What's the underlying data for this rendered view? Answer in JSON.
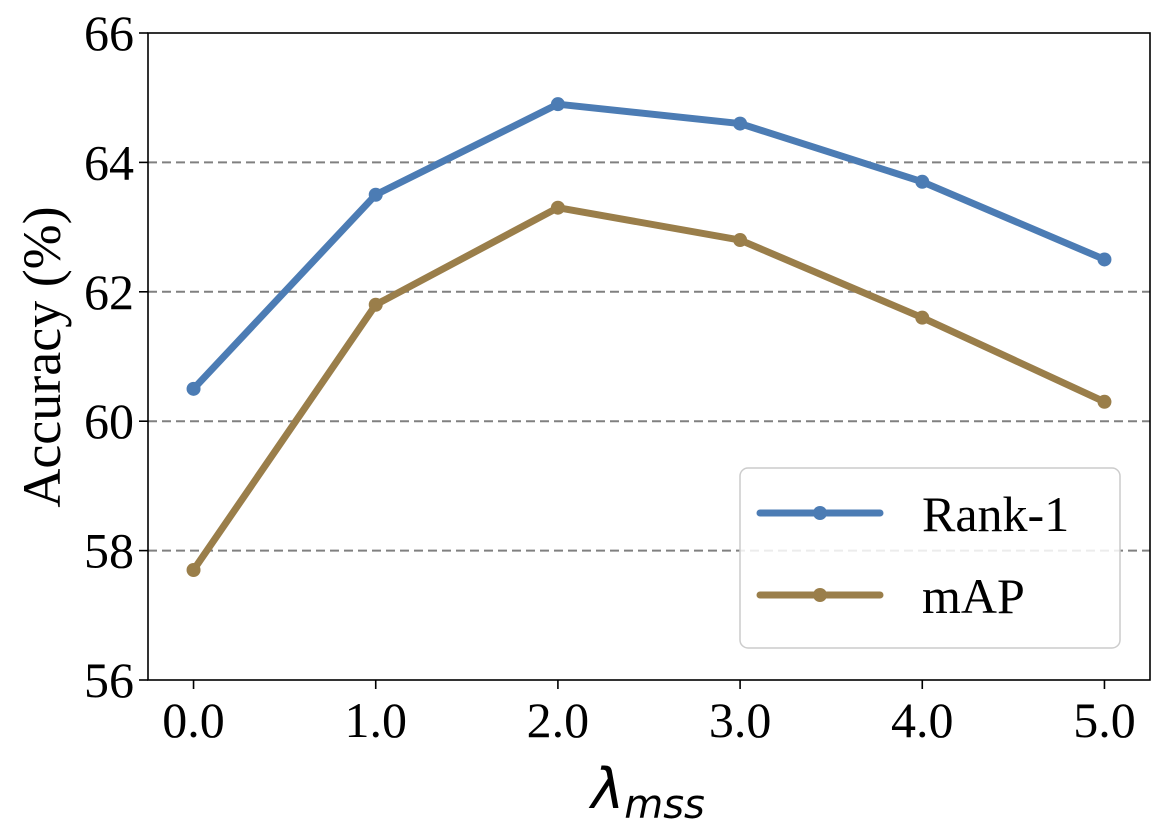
{
  "chart_data": {
    "type": "line",
    "title": "",
    "xlabel": "λ",
    "xlabel_subscript": "mss",
    "ylabel": "Accuracy (%)",
    "x": [
      0.0,
      1.0,
      2.0,
      3.0,
      4.0,
      5.0
    ],
    "x_tick_labels": [
      "0.0",
      "1.0",
      "2.0",
      "3.0",
      "4.0",
      "5.0"
    ],
    "y_ticks": [
      56,
      58,
      60,
      62,
      64,
      66
    ],
    "y_tick_labels": [
      "56",
      "58",
      "60",
      "62",
      "64",
      "66"
    ],
    "xlim": [
      -0.25,
      5.25
    ],
    "ylim": [
      56,
      66
    ],
    "grid": "horizontal dashed",
    "legend_position": "lower-right",
    "series": [
      {
        "name": "Rank-1",
        "color": "#4c7cb4",
        "values": [
          60.5,
          63.5,
          64.9,
          64.6,
          63.7,
          62.5
        ]
      },
      {
        "name": "mAP",
        "color": "#9a7e4a",
        "values": [
          57.7,
          61.8,
          63.3,
          62.8,
          61.6,
          60.3
        ]
      }
    ]
  }
}
